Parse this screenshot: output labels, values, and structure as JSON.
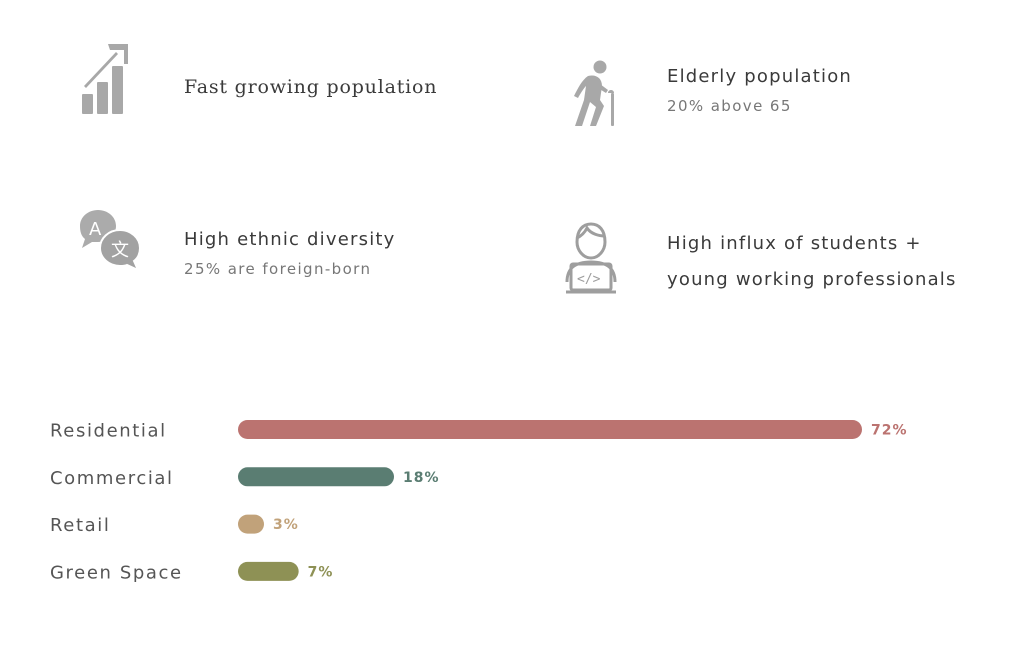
{
  "facts": [
    {
      "icon": "growth-chart-icon",
      "title": "Fast growing population",
      "subtitle": ""
    },
    {
      "icon": "elderly-person-icon",
      "title": "Elderly population",
      "subtitle": "20% above 65"
    },
    {
      "icon": "translate-speech-icon",
      "title": "High ethnic diversity",
      "subtitle": "25% are foreign-born"
    },
    {
      "icon": "developer-laptop-icon",
      "title_line1": "High influx of students +",
      "title_line2": "young working professionals"
    }
  ],
  "chart_data": {
    "type": "bar",
    "orientation": "horizontal",
    "categories": [
      "Residential",
      "Commercial",
      "Retail",
      "Green Space"
    ],
    "values": [
      72,
      18,
      3,
      7
    ],
    "value_labels": [
      "72%",
      "18%",
      "3%",
      "7%"
    ],
    "colors": [
      "#bb7370",
      "#5a7d72",
      "#c1a27a",
      "#8e9155"
    ],
    "title": "",
    "xlabel": "",
    "ylabel": "",
    "grid": false
  }
}
